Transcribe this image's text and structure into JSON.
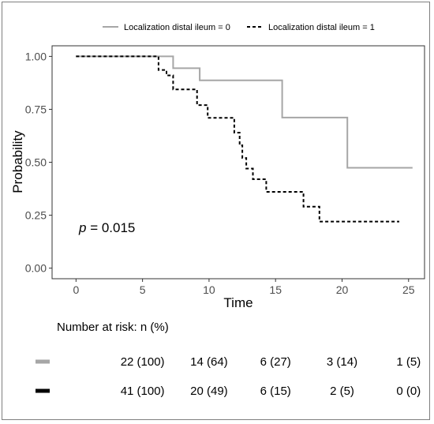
{
  "chart_data": {
    "type": "line",
    "step": true,
    "xlabel": "Time",
    "ylabel": "Probability",
    "xlim": [
      -1.8,
      26.2
    ],
    "ylim": [
      -0.05,
      1.05
    ],
    "xticks": [
      "0",
      "5",
      "10",
      "15",
      "20",
      "25"
    ],
    "yticks": [
      "0.00",
      "0.25",
      "0.50",
      "0.75",
      "1.00"
    ],
    "grid": false,
    "legend_position": "top",
    "annotation": {
      "prefix": "p",
      "text": " = 0.015"
    },
    "series": [
      {
        "name": "Localization distal ileum = 0",
        "color": "#a6a6a6",
        "dash": "solid",
        "points": [
          [
            0,
            1.0
          ],
          [
            7.3,
            1.0
          ],
          [
            7.3,
            0.944
          ],
          [
            9.3,
            0.944
          ],
          [
            9.3,
            0.887
          ],
          [
            15.5,
            0.887
          ],
          [
            15.5,
            0.711
          ],
          [
            20.4,
            0.711
          ],
          [
            20.4,
            0.474
          ],
          [
            25.3,
            0.474
          ]
        ]
      },
      {
        "name": "Localization distal ileum = 1",
        "color": "#000000",
        "dash": "dashed",
        "points": [
          [
            0,
            1.0
          ],
          [
            6.2,
            1.0
          ],
          [
            6.2,
            0.936
          ],
          [
            6.8,
            0.936
          ],
          [
            6.8,
            0.91
          ],
          [
            7.3,
            0.91
          ],
          [
            7.3,
            0.844
          ],
          [
            9.1,
            0.844
          ],
          [
            9.1,
            0.77
          ],
          [
            9.9,
            0.77
          ],
          [
            9.9,
            0.71
          ],
          [
            11.9,
            0.71
          ],
          [
            11.9,
            0.64
          ],
          [
            12.3,
            0.64
          ],
          [
            12.3,
            0.58
          ],
          [
            12.5,
            0.58
          ],
          [
            12.5,
            0.52
          ],
          [
            12.8,
            0.52
          ],
          [
            12.8,
            0.47
          ],
          [
            13.3,
            0.47
          ],
          [
            13.3,
            0.42
          ],
          [
            14.3,
            0.42
          ],
          [
            14.3,
            0.36
          ],
          [
            17.1,
            0.36
          ],
          [
            17.1,
            0.29
          ],
          [
            18.3,
            0.29
          ],
          [
            18.3,
            0.22
          ],
          [
            24.3,
            0.22
          ]
        ]
      }
    ],
    "risk_table": {
      "title": "Number at risk: n (%)",
      "rows": [
        {
          "color": "#a6a6a6",
          "values": [
            "22 (100)",
            "14 (64)",
            "6 (27)",
            "3 (14)",
            "1 (5)"
          ]
        },
        {
          "color": "#000000",
          "values": [
            "41 (100)",
            "20 (49)",
            "6 (15)",
            "2 (5)",
            "0 (0)"
          ]
        }
      ]
    }
  }
}
